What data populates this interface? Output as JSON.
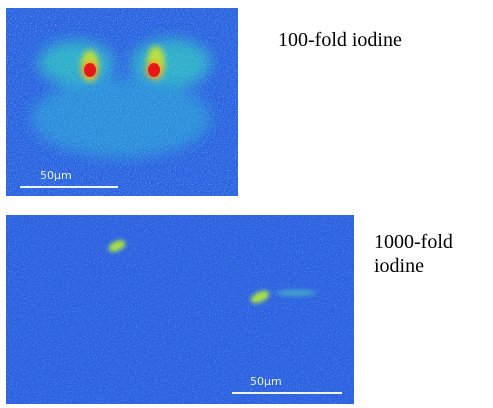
{
  "panels": [
    {
      "label": "100-fold iodine",
      "scale_bar": "50µm"
    },
    {
      "label": "1000-fold iodine",
      "scale_bar": "50µm"
    }
  ]
}
